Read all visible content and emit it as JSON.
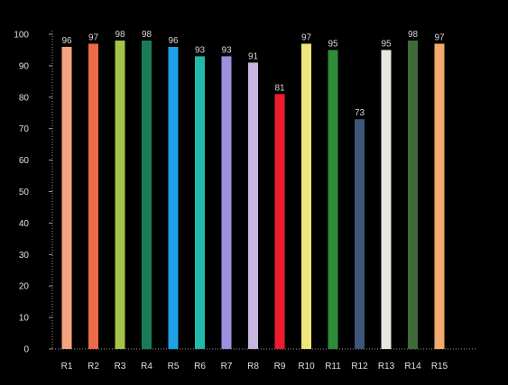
{
  "chart_data": {
    "type": "bar",
    "title": "",
    "xlabel": "",
    "ylabel": "",
    "categories": [
      "R1",
      "R2",
      "R3",
      "R4",
      "R5",
      "R6",
      "R7",
      "R8",
      "R9",
      "R10",
      "R11",
      "R12",
      "R13",
      "R14",
      "R15"
    ],
    "values": [
      96,
      97,
      98,
      98,
      96,
      93,
      93,
      91,
      81,
      97,
      95,
      73,
      95,
      98,
      97
    ],
    "value_labels": [
      "96",
      "97",
      "98",
      "98",
      "96",
      "93",
      "93",
      "91",
      "81",
      "97",
      "95",
      "73",
      "95",
      "98",
      "97"
    ],
    "bar_colors": [
      "#f4a47e",
      "#ec6a45",
      "#a5c348",
      "#1a7c56",
      "#1fa0e6",
      "#22b9a8",
      "#9f8fe0",
      "#c9b6e0",
      "#ec1c2e",
      "#efe57c",
      "#2e8b3a",
      "#3c5578",
      "#e6e8e2",
      "#3e6b38",
      "#f4aa6c"
    ],
    "ylim": [
      0,
      100
    ],
    "yticks": [
      0,
      10,
      20,
      30,
      40,
      50,
      60,
      70,
      80,
      90,
      100
    ],
    "grid": false,
    "legend": "none"
  }
}
